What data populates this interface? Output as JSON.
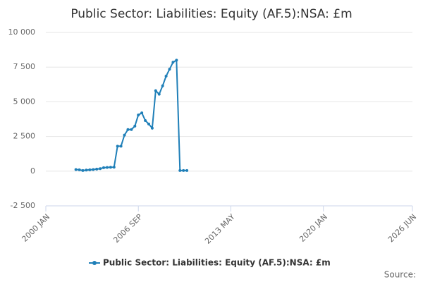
{
  "chart_data": {
    "type": "line",
    "title": "Public Sector: Liabilities: Equity (AF.5):NSA: £m",
    "source": "Source:",
    "x": [
      "2002-03",
      "2002-06",
      "2002-09",
      "2002-12",
      "2003-03",
      "2003-06",
      "2003-09",
      "2003-12",
      "2004-03",
      "2004-06",
      "2004-09",
      "2004-12",
      "2005-03",
      "2005-06",
      "2005-09",
      "2005-12",
      "2006-03",
      "2006-06",
      "2006-09",
      "2006-12",
      "2007-03",
      "2007-06",
      "2007-09",
      "2007-12",
      "2008-03",
      "2008-06",
      "2008-09",
      "2008-12",
      "2009-03",
      "2009-06",
      "2009-09",
      "2009-12",
      "2010-03"
    ],
    "series": [
      {
        "name": "Public Sector: Liabilities: Equity (AF.5):NSA: £m",
        "color": "#1f7fb8",
        "values": [
          120,
          100,
          50,
          80,
          100,
          120,
          150,
          180,
          250,
          270,
          280,
          290,
          1800,
          1800,
          2600,
          3000,
          3000,
          3250,
          4050,
          4200,
          3650,
          3400,
          3100,
          5800,
          5550,
          6150,
          6850,
          7350,
          7850,
          8000,
          50,
          50,
          50
        ]
      }
    ],
    "xlim": [
      "2000-01",
      "2026-06"
    ],
    "xticks": [
      {
        "value": "2000-01",
        "label": "2000 JAN"
      },
      {
        "value": "2006-09",
        "label": "2006 SEP"
      },
      {
        "value": "2013-05",
        "label": "2013 MAY"
      },
      {
        "value": "2020-01",
        "label": "2020 JAN"
      },
      {
        "value": "2026-06",
        "label": "2026 JUN"
      }
    ],
    "ylim": [
      -2500,
      10000
    ],
    "yticks": [
      {
        "value": -2500,
        "label": "-2 500"
      },
      0,
      {
        "value": 2500,
        "label": "2 500"
      },
      {
        "value": 5000,
        "label": "5 000"
      },
      {
        "value": 7500,
        "label": "7 500"
      },
      {
        "value": 10000,
        "label": "10 000"
      }
    ],
    "grid": true
  }
}
